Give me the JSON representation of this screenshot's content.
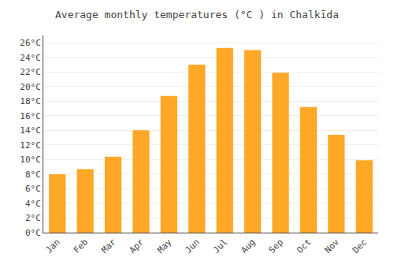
{
  "chart_data": {
    "type": "bar",
    "title": "Average monthly temperatures (°C ) in Chalkīda",
    "categories": [
      "Jan",
      "Feb",
      "Mar",
      "Apr",
      "May",
      "Jun",
      "Jul",
      "Aug",
      "Sep",
      "Oct",
      "Nov",
      "Dec"
    ],
    "values": [
      8.0,
      8.7,
      10.4,
      14.0,
      18.7,
      23.0,
      25.3,
      25.0,
      21.9,
      17.2,
      13.4,
      9.9
    ],
    "color": "#FFA726",
    "ylim": [
      0,
      27
    ],
    "yticks": [
      {
        "value": 0,
        "label": "0°C"
      },
      {
        "value": 2,
        "label": "2°C"
      },
      {
        "value": 4,
        "label": "4°C"
      },
      {
        "value": 6,
        "label": "6°C"
      },
      {
        "value": 8,
        "label": "8°C"
      },
      {
        "value": 10,
        "label": "10°C"
      },
      {
        "value": 12,
        "label": "12°C"
      },
      {
        "value": 14,
        "label": "14°C"
      },
      {
        "value": 16,
        "label": "16°C"
      },
      {
        "value": 18,
        "label": "18°C"
      },
      {
        "value": 20,
        "label": "20°C"
      },
      {
        "value": 22,
        "label": "22°C"
      },
      {
        "value": 24,
        "label": "24°C"
      },
      {
        "value": 26,
        "label": "26°C"
      }
    ],
    "grid": true
  }
}
